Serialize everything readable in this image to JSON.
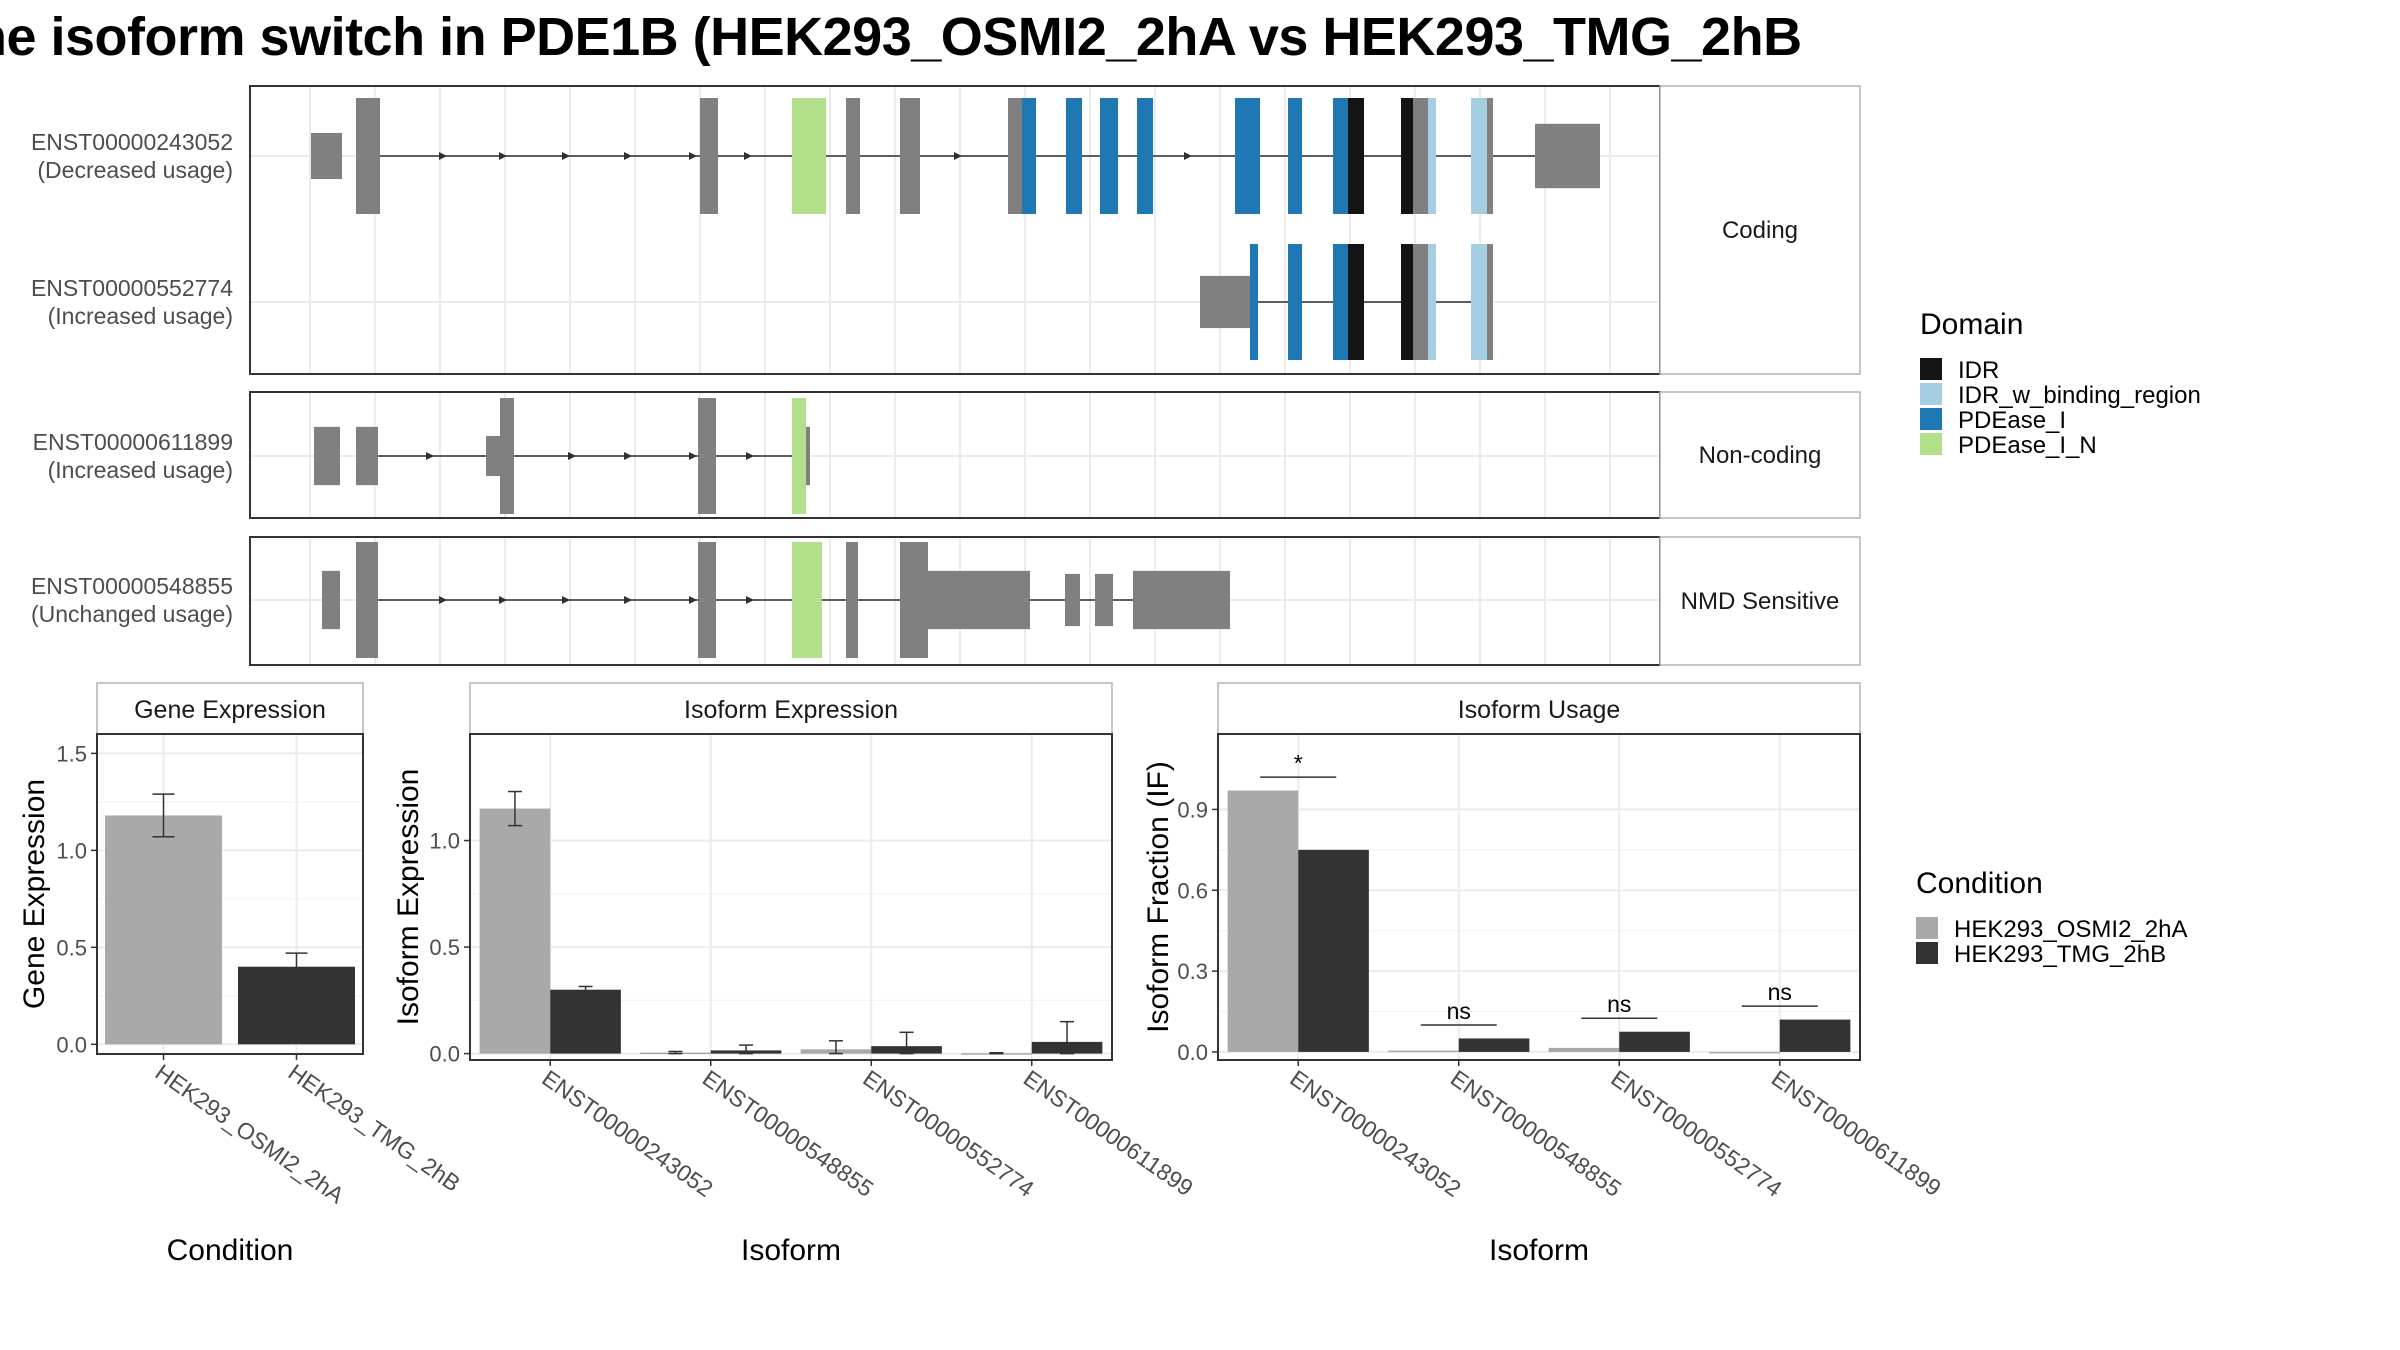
{
  "title": "he isoform switch in PDE1B (HEK293_OSMI2_2hA vs HEK293_TMG_2hB",
  "colors": {
    "cond1": "#a9a9a9",
    "cond2": "#333333",
    "exon": "#808080",
    "IDR": "#141414",
    "IDR_w_binding_region": "#a6cee3",
    "PDEase_I": "#1f78b4",
    "PDEase_I_N": "#b2df8a"
  },
  "transcripts": {
    "panels": [
      {
        "label": "Coding",
        "rows": [
          {
            "id": "ENST00000243052",
            "usage": "(Decreased usage)"
          },
          {
            "id": "ENST00000552774",
            "usage": "(Increased usage)"
          }
        ]
      },
      {
        "label": "Non-coding",
        "rows": [
          {
            "id": "ENST00000611899",
            "usage": "(Increased usage)"
          }
        ]
      },
      {
        "label": "NMD Sensitive",
        "rows": [
          {
            "id": "ENST00000548855",
            "usage": "(Unchanged usage)"
          }
        ]
      }
    ]
  },
  "legend_domain": {
    "title": "Domain",
    "items": [
      {
        "name": "IDR",
        "color": "#141414"
      },
      {
        "name": "IDR_w_binding_region",
        "color": "#a6cee3"
      },
      {
        "name": "PDEase_I",
        "color": "#1f78b4"
      },
      {
        "name": "PDEase_I_N",
        "color": "#b2df8a"
      }
    ]
  },
  "legend_condition": {
    "title": "Condition",
    "items": [
      {
        "name": "HEK293_OSMI2_2hA",
        "color": "#a9a9a9"
      },
      {
        "name": "HEK293_TMG_2hB",
        "color": "#333333"
      }
    ]
  },
  "chart_data": [
    {
      "type": "bar",
      "title": "Gene Expression",
      "xlabel": "Condition",
      "ylabel": "Gene Expression",
      "ylim": [
        -0.05,
        1.6
      ],
      "yticks": [
        "0.0",
        "0.5",
        "1.0",
        "1.5"
      ],
      "categories": [
        "HEK293_OSMI2_2hA",
        "HEK293_TMG_2hB"
      ],
      "values": [
        1.18,
        0.4
      ],
      "errors": [
        [
          1.07,
          1.29
        ],
        [
          0.33,
          0.47
        ]
      ]
    },
    {
      "type": "bar",
      "title": "Isoform Expression",
      "xlabel": "Isoform",
      "ylabel": "Isoform Expression",
      "ylim": [
        -0.03,
        1.5
      ],
      "yticks": [
        "0.0",
        "0.5",
        "1.0"
      ],
      "categories": [
        "ENST00000243052",
        "ENST00000548855",
        "ENST00000552774",
        "ENST00000611899"
      ],
      "series": [
        {
          "name": "HEK293_OSMI2_2hA",
          "values": [
            1.15,
            0.005,
            0.02,
            0.002
          ],
          "errors": [
            [
              1.07,
              1.23
            ],
            [
              0.0,
              0.01
            ],
            [
              0.0,
              0.06
            ],
            [
              0.0,
              0.004
            ]
          ]
        },
        {
          "name": "HEK293_TMG_2hB",
          "values": [
            0.3,
            0.015,
            0.035,
            0.055
          ],
          "errors": [
            [
              0.285,
              0.315
            ],
            [
              0.0,
              0.04
            ],
            [
              0.0,
              0.1
            ],
            [
              0.0,
              0.15
            ]
          ]
        }
      ]
    },
    {
      "type": "bar",
      "title": "Isoform Usage",
      "xlabel": "Isoform",
      "ylabel": "Isoform Fraction (IF)",
      "ylim": [
        -0.03,
        1.18
      ],
      "yticks": [
        "0.0",
        "0.3",
        "0.6",
        "0.9"
      ],
      "categories": [
        "ENST00000243052",
        "ENST00000548855",
        "ENST00000552774",
        "ENST00000611899"
      ],
      "series": [
        {
          "name": "HEK293_OSMI2_2hA",
          "values": [
            0.97,
            0.005,
            0.015,
            0.0
          ]
        },
        {
          "name": "HEK293_TMG_2hB",
          "values": [
            0.75,
            0.05,
            0.075,
            0.12
          ]
        }
      ],
      "significance": [
        "*",
        "ns",
        "ns",
        "ns"
      ]
    }
  ]
}
